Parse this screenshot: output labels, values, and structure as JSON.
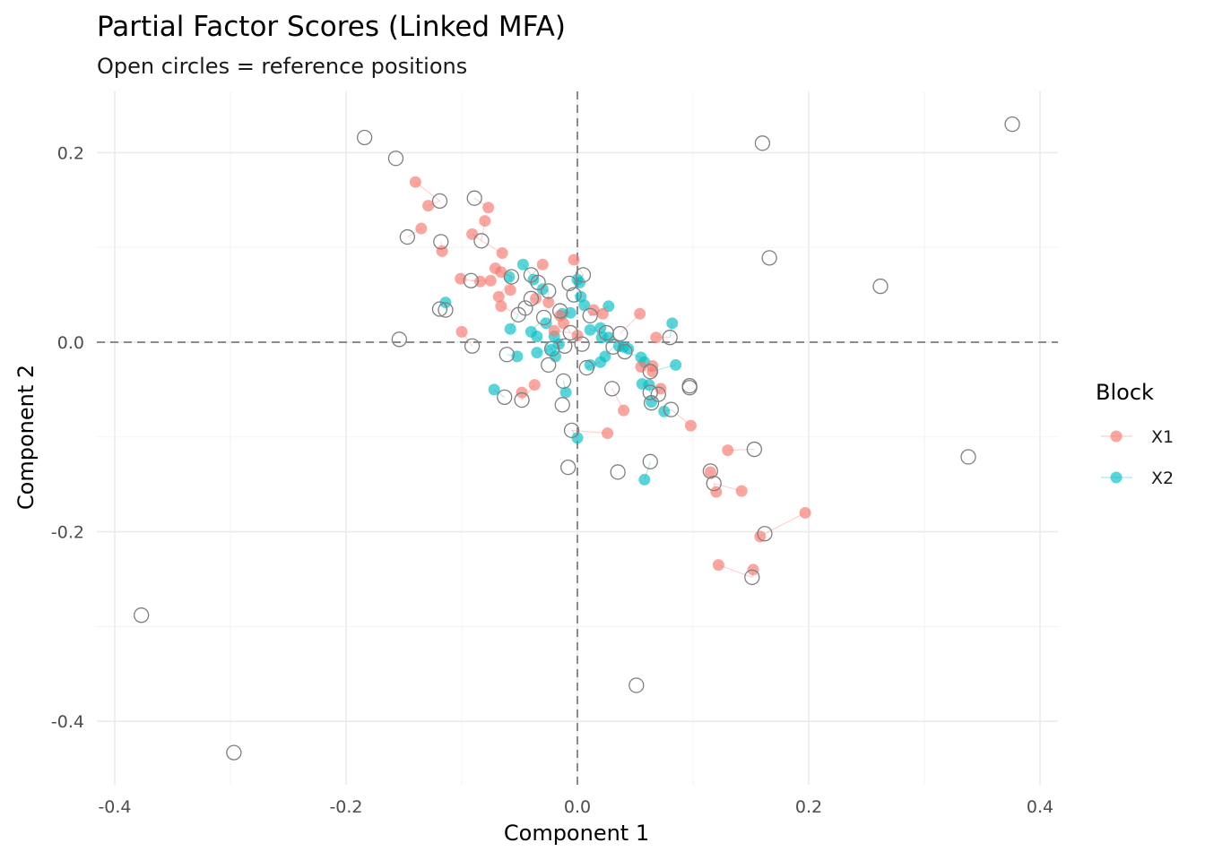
{
  "chart_data": {
    "type": "scatter",
    "title": "Partial Factor Scores (Linked MFA)",
    "subtitle": "Open circles = reference positions",
    "xlabel": "Component 1",
    "ylabel": "Component 2",
    "xlim": [
      -0.4,
      0.4
    ],
    "ylim": [
      -0.46,
      0.26
    ],
    "x_ticks": [
      -0.4,
      -0.2,
      0.0,
      0.2,
      0.4
    ],
    "y_ticks": [
      -0.4,
      -0.2,
      0.0,
      0.2
    ],
    "x_tick_labels": [
      "-0.4",
      "-0.2",
      "0.0",
      "0.2",
      "0.4"
    ],
    "y_tick_labels": [
      "-0.4",
      "-0.2",
      "0.0",
      "0.2"
    ],
    "grid": true,
    "reference_lines": {
      "x": 0,
      "y": 0,
      "style": "dashed"
    },
    "legend": {
      "title": "Block",
      "position": "right"
    },
    "colors": {
      "X1": "#F8766D",
      "X2": "#00BFC4",
      "reference": "#7f7f7f"
    },
    "reference_positions": [
      [
        -0.184,
        0.216
      ],
      [
        -0.157,
        0.194
      ],
      [
        -0.119,
        0.149
      ],
      [
        -0.089,
        0.152
      ],
      [
        -0.147,
        0.111
      ],
      [
        -0.118,
        0.106
      ],
      [
        -0.083,
        0.107
      ],
      [
        0.16,
        0.21
      ],
      [
        0.376,
        0.23
      ],
      [
        0.166,
        0.089
      ],
      [
        0.262,
        0.059
      ],
      [
        -0.092,
        0.065
      ],
      [
        -0.057,
        0.069
      ],
      [
        -0.04,
        0.071
      ],
      [
        -0.034,
        0.063
      ],
      [
        -0.025,
        0.054
      ],
      [
        -0.007,
        0.062
      ],
      [
        0.005,
        0.071
      ],
      [
        -0.003,
        0.05
      ],
      [
        -0.119,
        0.035
      ],
      [
        -0.114,
        0.034
      ],
      [
        -0.051,
        0.029
      ],
      [
        -0.045,
        0.036
      ],
      [
        -0.04,
        0.046
      ],
      [
        -0.029,
        0.026
      ],
      [
        -0.015,
        0.033
      ],
      [
        0.011,
        0.028
      ],
      [
        -0.154,
        0.003
      ],
      [
        -0.091,
        -0.004
      ],
      [
        -0.006,
        0.01
      ],
      [
        0.025,
        0.01
      ],
      [
        0.037,
        0.009
      ],
      [
        0.08,
        0.005
      ],
      [
        -0.022,
        -0.007
      ],
      [
        -0.011,
        -0.004
      ],
      [
        0.004,
        -0.002
      ],
      [
        0.031,
        -0.005
      ],
      [
        0.041,
        -0.01
      ],
      [
        -0.061,
        -0.013
      ],
      [
        -0.025,
        -0.024
      ],
      [
        0.008,
        -0.027
      ],
      [
        -0.012,
        -0.041
      ],
      [
        0.063,
        -0.031
      ],
      [
        -0.063,
        -0.058
      ],
      [
        -0.048,
        -0.061
      ],
      [
        -0.013,
        -0.066
      ],
      [
        0.03,
        -0.049
      ],
      [
        0.063,
        -0.053
      ],
      [
        0.07,
        -0.055
      ],
      [
        0.097,
        -0.046
      ],
      [
        0.097,
        -0.048
      ],
      [
        0.064,
        -0.064
      ],
      [
        0.081,
        -0.071
      ],
      [
        -0.005,
        -0.093
      ],
      [
        -0.008,
        -0.132
      ],
      [
        0.035,
        -0.137
      ],
      [
        0.063,
        -0.126
      ],
      [
        0.153,
        -0.113
      ],
      [
        0.115,
        -0.136
      ],
      [
        0.118,
        -0.149
      ],
      [
        0.162,
        -0.202
      ],
      [
        0.151,
        -0.248
      ],
      [
        0.051,
        -0.362
      ],
      [
        -0.377,
        -0.288
      ],
      [
        -0.297,
        -0.433
      ],
      [
        0.338,
        -0.121
      ]
    ],
    "series": [
      {
        "name": "X1",
        "points": [
          [
            -0.14,
            0.169
          ],
          [
            -0.129,
            0.144
          ],
          [
            -0.135,
            0.12
          ],
          [
            -0.077,
            0.142
          ],
          [
            -0.08,
            0.128
          ],
          [
            -0.091,
            0.114
          ],
          [
            -0.117,
            0.096
          ],
          [
            -0.065,
            0.094
          ],
          [
            -0.03,
            0.082
          ],
          [
            -0.003,
            0.087
          ],
          [
            -0.071,
            0.078
          ],
          [
            -0.066,
            0.074
          ],
          [
            -0.101,
            0.067
          ],
          [
            -0.084,
            0.064
          ],
          [
            -0.075,
            0.065
          ],
          [
            -0.058,
            0.055
          ],
          [
            -0.068,
            0.048
          ],
          [
            -0.066,
            0.038
          ],
          [
            -0.036,
            0.046
          ],
          [
            -0.025,
            0.042
          ],
          [
            -0.015,
            0.028
          ],
          [
            0.014,
            0.034
          ],
          [
            0.022,
            0.03
          ],
          [
            0.054,
            0.03
          ],
          [
            -0.012,
            0.02
          ],
          [
            -0.02,
            0.012
          ],
          [
            0.0,
            0.007
          ],
          [
            0.068,
            0.005
          ],
          [
            -0.1,
            0.011
          ],
          [
            0.055,
            -0.026
          ],
          [
            0.065,
            -0.025
          ],
          [
            0.065,
            -0.031
          ],
          [
            0.072,
            -0.049
          ],
          [
            -0.037,
            -0.045
          ],
          [
            -0.048,
            -0.053
          ],
          [
            0.04,
            -0.072
          ],
          [
            0.098,
            -0.088
          ],
          [
            0.026,
            -0.096
          ],
          [
            0.13,
            -0.114
          ],
          [
            0.115,
            -0.137
          ],
          [
            0.142,
            -0.157
          ],
          [
            0.12,
            -0.158
          ],
          [
            0.197,
            -0.18
          ],
          [
            0.158,
            -0.205
          ],
          [
            0.122,
            -0.235
          ],
          [
            0.152,
            -0.24
          ]
        ]
      },
      {
        "name": "X2",
        "points": [
          [
            -0.114,
            0.042
          ],
          [
            -0.047,
            0.082
          ],
          [
            -0.059,
            0.069
          ],
          [
            -0.038,
            0.066
          ],
          [
            -0.03,
            0.056
          ],
          [
            0.0,
            0.066
          ],
          [
            0.002,
            0.063
          ],
          [
            0.003,
            0.048
          ],
          [
            0.006,
            0.039
          ],
          [
            0.027,
            0.038
          ],
          [
            -0.027,
            0.02
          ],
          [
            -0.013,
            0.03
          ],
          [
            -0.006,
            0.031
          ],
          [
            0.082,
            0.02
          ],
          [
            -0.058,
            0.014
          ],
          [
            0.011,
            0.013
          ],
          [
            0.02,
            0.015
          ],
          [
            -0.04,
            0.011
          ],
          [
            -0.035,
            0.006
          ],
          [
            -0.02,
            0.006
          ],
          [
            0.021,
            0.005
          ],
          [
            0.027,
            0.005
          ],
          [
            0.04,
            -0.005
          ],
          [
            0.044,
            -0.007
          ],
          [
            0.036,
            -0.004
          ],
          [
            -0.016,
            -0.002
          ],
          [
            -0.023,
            -0.008
          ],
          [
            -0.035,
            -0.011
          ],
          [
            -0.019,
            -0.015
          ],
          [
            -0.052,
            -0.015
          ],
          [
            0.055,
            -0.016
          ],
          [
            0.058,
            -0.021
          ],
          [
            0.024,
            -0.015
          ],
          [
            0.02,
            -0.021
          ],
          [
            0.011,
            -0.024
          ],
          [
            0.085,
            -0.024
          ],
          [
            0.056,
            -0.044
          ],
          [
            0.062,
            -0.045
          ],
          [
            -0.072,
            -0.05
          ],
          [
            -0.01,
            -0.053
          ],
          [
            0.064,
            -0.063
          ],
          [
            0.075,
            -0.073
          ],
          [
            0.0,
            -0.101
          ],
          [
            0.058,
            -0.145
          ]
        ]
      }
    ]
  }
}
